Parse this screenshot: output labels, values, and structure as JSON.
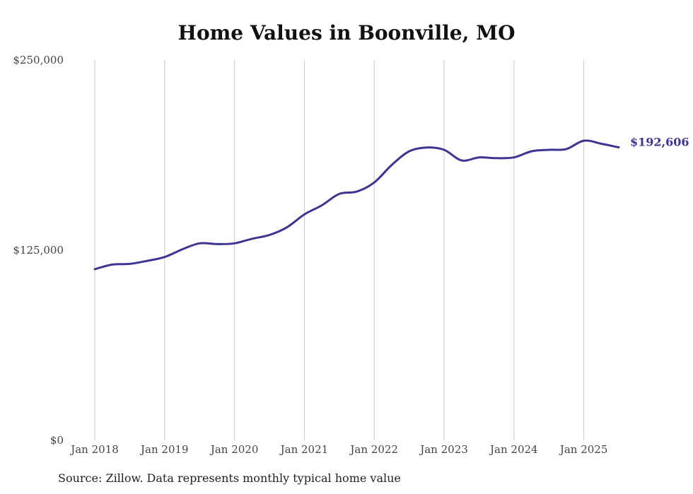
{
  "title": "Home Values in Boonville, MO",
  "source": "Source: Zillow. Data represents monthly typical home value",
  "colors": {
    "line": "#3d3591",
    "grid": "#c8c8c8",
    "text": "#444444"
  },
  "chart_data": {
    "type": "line",
    "title": "Home Values in Boonville, MO",
    "xlabel": "",
    "ylabel": "",
    "ylim": [
      0,
      250000
    ],
    "xlim": [
      "2018-01",
      "2025-07"
    ],
    "y_ticks": [
      {
        "value": 0,
        "label": "$0"
      },
      {
        "value": 125000,
        "label": "$125,000"
      },
      {
        "value": 250000,
        "label": "$250,000"
      }
    ],
    "x_ticks": [
      {
        "value": "2018-01",
        "label": "Jan 2018"
      },
      {
        "value": "2019-01",
        "label": "Jan 2019"
      },
      {
        "value": "2020-01",
        "label": "Jan 2020"
      },
      {
        "value": "2021-01",
        "label": "Jan 2021"
      },
      {
        "value": "2022-01",
        "label": "Jan 2022"
      },
      {
        "value": "2023-01",
        "label": "Jan 2023"
      },
      {
        "value": "2024-01",
        "label": "Jan 2024"
      },
      {
        "value": "2025-01",
        "label": "Jan 2025"
      }
    ],
    "grid": {
      "vertical": true,
      "horizontal": false
    },
    "end_label": "$192,606",
    "series": [
      {
        "color": "#3d3591",
        "points": [
          [
            "2018-01",
            112500
          ],
          [
            "2018-04",
            115500
          ],
          [
            "2018-07",
            116000
          ],
          [
            "2018-10",
            118000
          ],
          [
            "2019-01",
            120500
          ],
          [
            "2019-04",
            125500
          ],
          [
            "2019-07",
            129500
          ],
          [
            "2019-10",
            129000
          ],
          [
            "2020-01",
            129500
          ],
          [
            "2020-04",
            132500
          ],
          [
            "2020-07",
            135000
          ],
          [
            "2020-10",
            140000
          ],
          [
            "2021-01",
            148500
          ],
          [
            "2021-04",
            154500
          ],
          [
            "2021-07",
            162000
          ],
          [
            "2021-10",
            163500
          ],
          [
            "2022-01",
            169500
          ],
          [
            "2022-04",
            181000
          ],
          [
            "2022-07",
            190000
          ],
          [
            "2022-10",
            192500
          ],
          [
            "2023-01",
            191000
          ],
          [
            "2023-04",
            184000
          ],
          [
            "2023-07",
            186000
          ],
          [
            "2023-10",
            185500
          ],
          [
            "2024-01",
            186000
          ],
          [
            "2024-04",
            190000
          ],
          [
            "2024-07",
            191000
          ],
          [
            "2024-10",
            191500
          ],
          [
            "2025-01",
            197000
          ],
          [
            "2025-04",
            195000
          ],
          [
            "2025-07",
            192606
          ]
        ]
      }
    ]
  }
}
